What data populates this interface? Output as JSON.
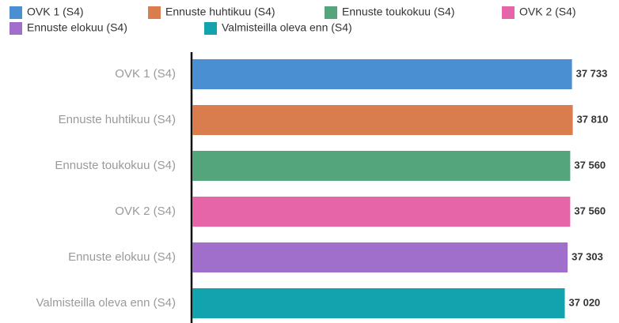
{
  "chart_data": {
    "type": "bar",
    "orientation": "horizontal",
    "categories": [
      "OVK 1 (S4)",
      "Ennuste huhtikuu (S4)",
      "Ennuste toukokuu (S4)",
      "OVK 2 (S4)",
      "Ennuste elokuu (S4)",
      "Valmisteilla oleva enn (S4)"
    ],
    "values": [
      37733,
      37810,
      37560,
      37560,
      37303,
      37020
    ],
    "value_labels": [
      "37 733",
      "37 810",
      "37 560",
      "37 560",
      "37 303",
      "37 020"
    ],
    "colors": [
      "#4a8fd1",
      "#d97c4e",
      "#54a57b",
      "#e466a8",
      "#a06fcb",
      "#13a3ae"
    ],
    "xlim": [
      0,
      38000
    ],
    "legend": "top-left"
  }
}
